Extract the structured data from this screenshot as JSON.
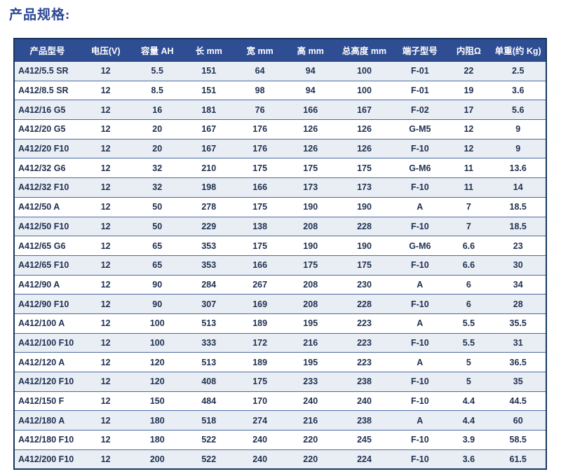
{
  "page": {
    "title": "产品规格:"
  },
  "colors": {
    "header_background": "#2e4d92",
    "header_text": "#ffffff",
    "stripe_row_background": "#e9eef5",
    "plain_row_background": "#ffffff",
    "outer_border": "#17365d",
    "row_separator": "#4a6aa5",
    "title_text": "#2c4795",
    "cell_text": "#1f3050"
  },
  "table": {
    "columns": [
      "产品型号",
      "电压(V)",
      "容量 AH",
      "长 mm",
      "宽 mm",
      "高 mm",
      "总高度 mm",
      "端子型号",
      "内阻Ω",
      "单重(约 Kg)"
    ],
    "rows": [
      [
        "A412/5.5 SR",
        "12",
        "5.5",
        "151",
        "64",
        "94",
        "100",
        "F-01",
        "22",
        "2.5"
      ],
      [
        "A412/8.5 SR",
        "12",
        "8.5",
        "151",
        "98",
        "94",
        "100",
        "F-01",
        "19",
        "3.6"
      ],
      [
        "A412/16 G5",
        "12",
        "16",
        "181",
        "76",
        "166",
        "167",
        "F-02",
        "17",
        "5.6"
      ],
      [
        "A412/20 G5",
        "12",
        "20",
        "167",
        "176",
        "126",
        "126",
        "G-M5",
        "12",
        "9"
      ],
      [
        "A412/20 F10",
        "12",
        "20",
        "167",
        "176",
        "126",
        "126",
        "F-10",
        "12",
        "9"
      ],
      [
        "A412/32 G6",
        "12",
        "32",
        "210",
        "175",
        "175",
        "175",
        "G-M6",
        "11",
        "13.6"
      ],
      [
        "A412/32 F10",
        "12",
        "32",
        "198",
        "166",
        "173",
        "173",
        "F-10",
        "11",
        "14"
      ],
      [
        "A412/50 A",
        "12",
        "50",
        "278",
        "175",
        "190",
        "190",
        "A",
        "7",
        "18.5"
      ],
      [
        "A412/50 F10",
        "12",
        "50",
        "229",
        "138",
        "208",
        "228",
        "F-10",
        "7",
        "18.5"
      ],
      [
        "A412/65 G6",
        "12",
        "65",
        "353",
        "175",
        "190",
        "190",
        "G-M6",
        "6.6",
        "23"
      ],
      [
        "A412/65 F10",
        "12",
        "65",
        "353",
        "166",
        "175",
        "175",
        "F-10",
        "6.6",
        "30"
      ],
      [
        "A412/90 A",
        "12",
        "90",
        "284",
        "267",
        "208",
        "230",
        "A",
        "6",
        "34"
      ],
      [
        "A412/90 F10",
        "12",
        "90",
        "307",
        "169",
        "208",
        "228",
        "F-10",
        "6",
        "28"
      ],
      [
        "A412/100 A",
        "12",
        "100",
        "513",
        "189",
        "195",
        "223",
        "A",
        "5.5",
        "35.5"
      ],
      [
        "A412/100 F10",
        "12",
        "100",
        "333",
        "172",
        "216",
        "223",
        "F-10",
        "5.5",
        "31"
      ],
      [
        "A412/120 A",
        "12",
        "120",
        "513",
        "189",
        "195",
        "223",
        "A",
        "5",
        "36.5"
      ],
      [
        "A412/120 F10",
        "12",
        "120",
        "408",
        "175",
        "233",
        "238",
        "F-10",
        "5",
        "35"
      ],
      [
        "A412/150 F",
        "12",
        "150",
        "484",
        "170",
        "240",
        "240",
        "F-10",
        "4.4",
        "44.5"
      ],
      [
        "A412/180 A",
        "12",
        "180",
        "518",
        "274",
        "216",
        "238",
        "A",
        "4.4",
        "60"
      ],
      [
        "A412/180 F10",
        "12",
        "180",
        "522",
        "240",
        "220",
        "245",
        "F-10",
        "3.9",
        "58.5"
      ],
      [
        "A412/200 F10",
        "12",
        "200",
        "522",
        "240",
        "220",
        "224",
        "F-10",
        "3.6",
        "61.5"
      ]
    ]
  }
}
